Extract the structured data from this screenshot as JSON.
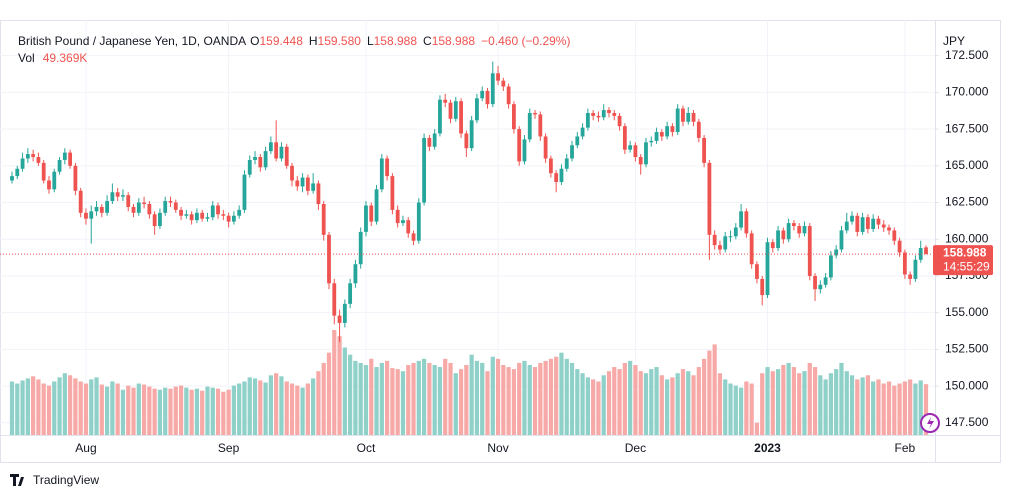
{
  "chart_data": {
    "type": "candlestick",
    "title": "British Pound / Japanese Yen, 1D, OANDA",
    "ohlc_header": [
      {
        "label": "O",
        "value": "159.448"
      },
      {
        "label": "H",
        "value": "159.580"
      },
      {
        "label": "L",
        "value": "158.988"
      },
      {
        "label": "C",
        "value": "158.988"
      }
    ],
    "change": "−0.460 (−0.29%)",
    "volume_label": "Vol",
    "volume_text": "49.369K",
    "currency": "JPY",
    "last_price_label": "158.988",
    "countdown": "14:55:29",
    "up_color": "#26a69a",
    "down_color": "#ef5350",
    "volume_up_color": "#8fd0c9",
    "volume_down_color": "#f6a9a7",
    "grid": true,
    "ylim": [
      146.67,
      174.93
    ],
    "yticks": [
      {
        "value": 147.5,
        "label": "147.500"
      },
      {
        "value": 150,
        "label": "150.000"
      },
      {
        "value": 152.5,
        "label": "152.500"
      },
      {
        "value": 155,
        "label": "155.000"
      },
      {
        "value": 157.5,
        "label": "157.500"
      },
      {
        "value": 160,
        "label": "160.000"
      },
      {
        "value": 162.5,
        "label": "162.500"
      },
      {
        "value": 165,
        "label": "165.000"
      },
      {
        "value": 167.5,
        "label": "167.500"
      },
      {
        "value": 170,
        "label": "170.000"
      },
      {
        "value": 172.5,
        "label": "172.500"
      }
    ],
    "xticks": [
      {
        "value": 14,
        "label": "Aug"
      },
      {
        "value": 41,
        "label": "Sep"
      },
      {
        "value": 67,
        "label": "Oct"
      },
      {
        "value": 92,
        "label": "Nov"
      },
      {
        "value": 118,
        "label": "Dec"
      },
      {
        "value": 143,
        "label": "2023"
      },
      {
        "value": 169,
        "label": "Feb"
      }
    ],
    "candles": [
      [
        164.0,
        164.6,
        163.8,
        164.3
      ],
      [
        164.3,
        165.0,
        164.1,
        164.8
      ],
      [
        164.8,
        165.9,
        164.6,
        165.5
      ],
      [
        165.5,
        166.2,
        165.2,
        165.8
      ],
      [
        165.8,
        166.1,
        165.3,
        165.6
      ],
      [
        165.6,
        165.9,
        165.0,
        165.2
      ],
      [
        165.2,
        165.4,
        163.8,
        164.0
      ],
      [
        164.0,
        164.3,
        163.1,
        163.4
      ],
      [
        163.4,
        164.8,
        163.2,
        164.6
      ],
      [
        164.6,
        165.6,
        164.4,
        165.4
      ],
      [
        165.4,
        166.2,
        165.1,
        165.9
      ],
      [
        165.9,
        166.1,
        164.8,
        165.0
      ],
      [
        165.0,
        165.2,
        163.0,
        163.3
      ],
      [
        163.3,
        163.5,
        161.5,
        161.8
      ],
      [
        161.8,
        162.1,
        161.0,
        161.4
      ],
      [
        161.4,
        162.3,
        159.7,
        161.9
      ],
      [
        161.9,
        162.6,
        161.6,
        162.2
      ],
      [
        162.2,
        162.4,
        161.5,
        161.8
      ],
      [
        161.8,
        163.0,
        161.6,
        162.6
      ],
      [
        162.6,
        163.8,
        162.4,
        163.2
      ],
      [
        163.2,
        163.5,
        162.6,
        162.9
      ],
      [
        162.9,
        163.4,
        162.6,
        163.0
      ],
      [
        163.0,
        163.2,
        161.9,
        162.2
      ],
      [
        162.2,
        162.4,
        161.5,
        161.8
      ],
      [
        161.8,
        162.8,
        161.6,
        162.5
      ],
      [
        162.5,
        162.9,
        162.1,
        162.4
      ],
      [
        162.4,
        162.6,
        161.4,
        161.7
      ],
      [
        161.7,
        161.9,
        160.3,
        160.9
      ],
      [
        160.9,
        162.1,
        160.7,
        161.8
      ],
      [
        161.8,
        162.9,
        161.6,
        162.6
      ],
      [
        162.6,
        162.9,
        162.2,
        162.5
      ],
      [
        162.5,
        162.7,
        161.8,
        162.0
      ],
      [
        162.0,
        162.2,
        161.3,
        161.6
      ],
      [
        161.6,
        162.0,
        161.4,
        161.7
      ],
      [
        161.7,
        161.9,
        161.0,
        161.3
      ],
      [
        161.3,
        162.1,
        161.1,
        161.8
      ],
      [
        161.8,
        162.0,
        161.2,
        161.4
      ],
      [
        161.4,
        161.8,
        161.2,
        161.5
      ],
      [
        161.5,
        162.6,
        161.3,
        162.3
      ],
      [
        162.3,
        162.5,
        161.4,
        161.7
      ],
      [
        161.7,
        162.0,
        161.3,
        161.6
      ],
      [
        161.6,
        161.8,
        160.8,
        161.2
      ],
      [
        161.2,
        161.9,
        161.0,
        161.6
      ],
      [
        161.6,
        162.3,
        161.4,
        162.0
      ],
      [
        162.0,
        164.7,
        161.8,
        164.4
      ],
      [
        164.4,
        165.7,
        164.2,
        165.4
      ],
      [
        165.4,
        166.0,
        165.1,
        165.6
      ],
      [
        165.6,
        165.8,
        164.6,
        164.9
      ],
      [
        164.9,
        166.3,
        164.7,
        166.0
      ],
      [
        166.0,
        167.0,
        165.8,
        166.6
      ],
      [
        166.6,
        168.1,
        165.3,
        165.5
      ],
      [
        165.5,
        166.6,
        165.3,
        166.3
      ],
      [
        166.3,
        166.5,
        164.8,
        165.0
      ],
      [
        165.0,
        165.2,
        163.6,
        164.0
      ],
      [
        164.0,
        164.3,
        163.3,
        163.6
      ],
      [
        163.6,
        164.5,
        163.2,
        164.2
      ],
      [
        164.2,
        164.4,
        163.0,
        163.3
      ],
      [
        163.3,
        164.5,
        163.1,
        163.8
      ],
      [
        163.8,
        164.0,
        162.0,
        162.4
      ],
      [
        162.4,
        162.6,
        159.9,
        160.3
      ],
      [
        160.3,
        160.5,
        156.6,
        157.0
      ],
      [
        157.0,
        157.3,
        154.2,
        154.8
      ],
      [
        154.8,
        155.2,
        153.0,
        154.3
      ],
      [
        154.3,
        155.9,
        154.0,
        155.6
      ],
      [
        155.6,
        157.3,
        155.3,
        157.0
      ],
      [
        157.0,
        158.6,
        156.7,
        158.3
      ],
      [
        158.3,
        160.8,
        158.0,
        160.5
      ],
      [
        160.5,
        162.6,
        160.2,
        162.3
      ],
      [
        162.3,
        162.5,
        160.9,
        161.2
      ],
      [
        161.2,
        163.7,
        161.0,
        163.4
      ],
      [
        163.4,
        165.8,
        163.2,
        165.5
      ],
      [
        165.5,
        165.7,
        164.0,
        164.3
      ],
      [
        164.3,
        164.5,
        161.7,
        162.0
      ],
      [
        162.0,
        162.3,
        160.8,
        161.1
      ],
      [
        161.1,
        161.6,
        160.9,
        161.3
      ],
      [
        161.3,
        161.5,
        160.1,
        160.4
      ],
      [
        160.4,
        160.6,
        159.6,
        159.9
      ],
      [
        159.9,
        162.8,
        159.7,
        162.5
      ],
      [
        162.5,
        167.2,
        162.3,
        166.9
      ],
      [
        166.9,
        167.1,
        166.0,
        166.3
      ],
      [
        166.3,
        167.5,
        166.1,
        167.2
      ],
      [
        167.2,
        169.8,
        167.0,
        169.5
      ],
      [
        169.5,
        169.9,
        169.0,
        169.3
      ],
      [
        169.3,
        169.5,
        167.9,
        168.2
      ],
      [
        168.2,
        169.7,
        168.0,
        169.4
      ],
      [
        169.4,
        169.6,
        166.9,
        167.2
      ],
      [
        167.2,
        167.4,
        165.6,
        166.2
      ],
      [
        166.2,
        168.4,
        166.0,
        168.1
      ],
      [
        168.1,
        169.9,
        167.9,
        169.6
      ],
      [
        169.6,
        170.4,
        169.4,
        170.1
      ],
      [
        170.1,
        170.3,
        168.9,
        169.2
      ],
      [
        169.2,
        172.1,
        169.0,
        171.3
      ],
      [
        171.3,
        171.8,
        170.5,
        170.8
      ],
      [
        170.8,
        171.0,
        170.1,
        170.4
      ],
      [
        170.4,
        170.6,
        168.9,
        169.2
      ],
      [
        169.2,
        169.4,
        167.2,
        167.5
      ],
      [
        167.5,
        167.7,
        165.0,
        165.3
      ],
      [
        165.3,
        167.1,
        165.1,
        166.8
      ],
      [
        166.8,
        168.9,
        166.6,
        168.6
      ],
      [
        168.6,
        168.8,
        168.2,
        168.5
      ],
      [
        168.5,
        168.7,
        166.7,
        167.0
      ],
      [
        167.0,
        167.2,
        165.2,
        165.5
      ],
      [
        165.5,
        165.7,
        164.2,
        164.5
      ],
      [
        164.5,
        164.7,
        163.2,
        163.9
      ],
      [
        163.9,
        165.1,
        163.7,
        164.8
      ],
      [
        164.8,
        165.8,
        164.6,
        165.5
      ],
      [
        165.5,
        166.7,
        165.3,
        166.4
      ],
      [
        166.4,
        167.3,
        166.2,
        167.0
      ],
      [
        167.0,
        167.9,
        166.8,
        167.6
      ],
      [
        167.6,
        168.9,
        167.4,
        168.6
      ],
      [
        168.6,
        168.8,
        168.1,
        168.4
      ],
      [
        168.4,
        168.7,
        168.0,
        168.3
      ],
      [
        168.3,
        169.2,
        168.1,
        168.8
      ],
      [
        168.8,
        169.0,
        168.3,
        168.6
      ],
      [
        168.6,
        168.8,
        168.1,
        168.4
      ],
      [
        168.4,
        168.6,
        167.4,
        167.7
      ],
      [
        167.7,
        167.9,
        165.8,
        166.1
      ],
      [
        166.1,
        166.7,
        165.9,
        166.4
      ],
      [
        166.4,
        166.6,
        165.3,
        165.6
      ],
      [
        165.6,
        165.8,
        164.4,
        165.1
      ],
      [
        165.1,
        166.9,
        164.9,
        166.6
      ],
      [
        166.6,
        167.0,
        166.3,
        166.7
      ],
      [
        166.7,
        167.6,
        166.5,
        167.3
      ],
      [
        167.3,
        167.5,
        166.7,
        167.0
      ],
      [
        167.0,
        168.0,
        166.8,
        167.7
      ],
      [
        167.7,
        167.9,
        167.0,
        167.3
      ],
      [
        167.3,
        169.2,
        167.1,
        168.9
      ],
      [
        168.9,
        169.1,
        167.7,
        168.0
      ],
      [
        168.0,
        169.0,
        167.8,
        168.6
      ],
      [
        168.6,
        168.8,
        167.7,
        168.0
      ],
      [
        168.0,
        168.2,
        166.6,
        166.9
      ],
      [
        166.9,
        167.1,
        164.9,
        165.2
      ],
      [
        165.2,
        165.4,
        158.6,
        160.3
      ],
      [
        160.3,
        160.6,
        159.3,
        159.6
      ],
      [
        159.6,
        159.9,
        159.0,
        159.3
      ],
      [
        159.3,
        160.5,
        159.1,
        160.2
      ],
      [
        160.2,
        160.6,
        159.8,
        160.2
      ],
      [
        160.2,
        161.1,
        160.0,
        160.8
      ],
      [
        160.8,
        162.4,
        160.6,
        161.9
      ],
      [
        161.9,
        162.1,
        160.1,
        160.4
      ],
      [
        160.4,
        160.6,
        158.0,
        158.3
      ],
      [
        158.3,
        158.5,
        157.0,
        157.3
      ],
      [
        157.3,
        157.5,
        155.5,
        156.2
      ],
      [
        156.2,
        160.1,
        156.0,
        159.8
      ],
      [
        159.8,
        160.0,
        159.1,
        159.4
      ],
      [
        159.4,
        160.9,
        159.2,
        160.6
      ],
      [
        160.6,
        160.8,
        159.7,
        160.0
      ],
      [
        160.0,
        161.4,
        159.8,
        161.1
      ],
      [
        161.1,
        161.3,
        160.6,
        160.9
      ],
      [
        160.9,
        161.1,
        160.1,
        160.4
      ],
      [
        160.4,
        161.2,
        160.2,
        160.9
      ],
      [
        160.9,
        161.1,
        157.2,
        157.5
      ],
      [
        157.5,
        157.7,
        155.8,
        156.6
      ],
      [
        156.6,
        157.2,
        156.3,
        156.9
      ],
      [
        156.9,
        157.7,
        156.7,
        157.4
      ],
      [
        157.4,
        159.2,
        157.2,
        158.9
      ],
      [
        158.9,
        159.6,
        158.7,
        159.3
      ],
      [
        159.3,
        160.9,
        159.1,
        160.6
      ],
      [
        160.6,
        161.8,
        160.4,
        161.2
      ],
      [
        161.2,
        161.9,
        161.0,
        161.6
      ],
      [
        161.6,
        161.8,
        160.2,
        160.5
      ],
      [
        160.5,
        161.8,
        160.3,
        161.5
      ],
      [
        161.5,
        161.7,
        160.4,
        160.7
      ],
      [
        160.7,
        161.7,
        160.5,
        161.4
      ],
      [
        161.4,
        161.6,
        160.7,
        161.0
      ],
      [
        161.0,
        161.3,
        160.5,
        160.8
      ],
      [
        160.8,
        161.0,
        160.3,
        160.6
      ],
      [
        160.6,
        160.8,
        159.6,
        159.9
      ],
      [
        159.9,
        160.1,
        158.8,
        159.1
      ],
      [
        159.1,
        159.3,
        157.3,
        157.6
      ],
      [
        157.6,
        157.8,
        156.9,
        157.3
      ],
      [
        157.3,
        158.9,
        157.1,
        158.6
      ],
      [
        158.6,
        159.9,
        158.4,
        159.4
      ],
      [
        159.448,
        159.58,
        158.988,
        158.988
      ]
    ],
    "volumes": [
      52,
      50,
      53,
      55,
      57,
      54,
      50,
      48,
      52,
      56,
      60,
      58,
      55,
      52,
      50,
      54,
      56,
      49,
      47,
      52,
      50,
      44,
      48,
      46,
      50,
      49,
      47,
      45,
      44,
      46,
      45,
      47,
      48,
      46,
      44,
      45,
      43,
      47,
      46,
      45,
      42,
      44,
      48,
      50,
      52,
      56,
      55,
      53,
      51,
      58,
      60,
      57,
      52,
      50,
      48,
      46,
      50,
      55,
      62,
      70,
      80,
      102,
      96,
      85,
      78,
      72,
      70,
      68,
      74,
      66,
      70,
      72,
      65,
      64,
      62,
      68,
      70,
      72,
      74,
      70,
      68,
      66,
      74,
      70,
      60,
      64,
      68,
      78,
      72,
      70,
      62,
      76,
      74,
      68,
      66,
      64,
      70,
      72,
      68,
      66,
      70,
      72,
      74,
      76,
      80,
      74,
      70,
      64,
      60,
      56,
      54,
      52,
      58,
      62,
      66,
      64,
      70,
      72,
      68,
      62,
      60,
      64,
      66,
      58,
      54,
      56,
      60,
      64,
      62,
      58,
      66,
      74,
      82,
      88,
      60,
      54,
      50,
      48,
      46,
      52,
      50,
      12,
      60,
      66,
      62,
      64,
      68,
      70,
      66,
      60,
      62,
      70,
      66,
      58,
      54,
      60,
      64,
      70,
      62,
      58,
      54,
      56,
      58,
      52,
      54,
      50,
      52,
      48,
      50,
      52,
      54,
      50,
      53,
      49.369
    ]
  },
  "footer": {
    "brand": "TradingView"
  }
}
